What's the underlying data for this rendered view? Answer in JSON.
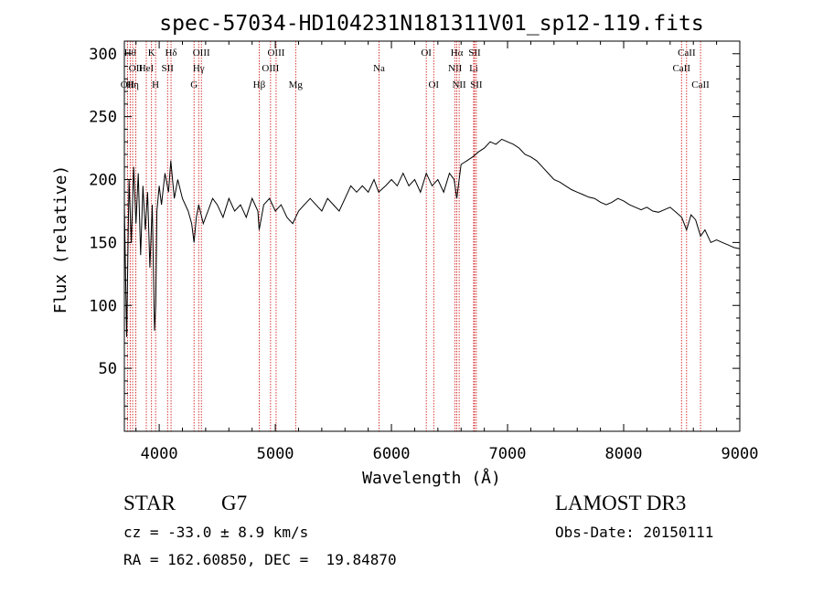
{
  "chart_data": {
    "type": "line",
    "title": "spec-57034-HD104231N181311V01_sp12-119.fits",
    "xlabel": "Wavelength (Å)",
    "ylabel": "Flux (relative)",
    "xlim": [
      3700,
      9000
    ],
    "ylim": [
      0,
      310
    ],
    "x_ticks": [
      4000,
      5000,
      6000,
      7000,
      8000,
      9000
    ],
    "y_ticks": [
      50,
      100,
      150,
      200,
      250,
      300
    ],
    "series": [
      {
        "name": "flux",
        "x": [
          3700,
          3720,
          3740,
          3760,
          3780,
          3800,
          3820,
          3840,
          3860,
          3880,
          3900,
          3920,
          3940,
          3960,
          3970,
          3980,
          4000,
          4020,
          4050,
          4080,
          4100,
          4130,
          4160,
          4200,
          4250,
          4280,
          4300,
          4320,
          4340,
          4380,
          4420,
          4460,
          4500,
          4550,
          4600,
          4650,
          4700,
          4750,
          4800,
          4850,
          4861,
          4900,
          4950,
          5000,
          5050,
          5100,
          5150,
          5200,
          5250,
          5300,
          5350,
          5400,
          5450,
          5500,
          5550,
          5600,
          5650,
          5700,
          5750,
          5800,
          5850,
          5890,
          5950,
          6000,
          6050,
          6100,
          6150,
          6200,
          6250,
          6300,
          6350,
          6400,
          6450,
          6500,
          6540,
          6563,
          6600,
          6650,
          6700,
          6750,
          6800,
          6850,
          6900,
          6950,
          7000,
          7050,
          7100,
          7150,
          7200,
          7250,
          7300,
          7350,
          7400,
          7450,
          7500,
          7550,
          7600,
          7650,
          7700,
          7750,
          7800,
          7850,
          7900,
          7950,
          8000,
          8050,
          8100,
          8150,
          8200,
          8250,
          8300,
          8350,
          8400,
          8450,
          8500,
          8542,
          8580,
          8620,
          8662,
          8700,
          8750,
          8800,
          8850,
          8900,
          8950,
          9000
        ],
        "y": [
          180,
          75,
          200,
          150,
          210,
          165,
          205,
          140,
          195,
          160,
          190,
          130,
          180,
          80,
          100,
          175,
          195,
          180,
          205,
          190,
          215,
          185,
          200,
          185,
          175,
          165,
          150,
          170,
          180,
          165,
          175,
          185,
          180,
          170,
          185,
          175,
          180,
          170,
          185,
          175,
          160,
          180,
          185,
          175,
          180,
          170,
          165,
          175,
          180,
          185,
          180,
          175,
          185,
          180,
          175,
          185,
          195,
          190,
          195,
          190,
          200,
          190,
          195,
          200,
          195,
          205,
          195,
          200,
          190,
          205,
          195,
          200,
          190,
          205,
          200,
          185,
          212,
          215,
          218,
          222,
          225,
          230,
          228,
          232,
          230,
          228,
          225,
          220,
          218,
          215,
          210,
          205,
          200,
          198,
          195,
          192,
          190,
          188,
          186,
          185,
          182,
          180,
          182,
          185,
          183,
          180,
          178,
          176,
          178,
          175,
          174,
          176,
          178,
          174,
          170,
          160,
          172,
          168,
          155,
          160,
          150,
          152,
          150,
          148,
          146,
          145
        ]
      }
    ],
    "line_markers": [
      {
        "wl": 3727,
        "label": "OII",
        "row": 2
      },
      {
        "wl": 3750,
        "label": "Hθ",
        "row": 0
      },
      {
        "wl": 3771,
        "label": "Hη",
        "row": 2
      },
      {
        "wl": 3798,
        "label": "OII",
        "row": 1
      },
      {
        "wl": 3889,
        "label": "HeI",
        "row": 1
      },
      {
        "wl": 3934,
        "label": "K",
        "row": 0
      },
      {
        "wl": 3969,
        "label": "H",
        "row": 2
      },
      {
        "wl": 4072,
        "label": "SII",
        "row": 1
      },
      {
        "wl": 4102,
        "label": "Hδ",
        "row": 0
      },
      {
        "wl": 4300,
        "label": "G",
        "row": 2
      },
      {
        "wl": 4340,
        "label": "Hγ",
        "row": 1
      },
      {
        "wl": 4363,
        "label": "OIII",
        "row": 0
      },
      {
        "wl": 4861,
        "label": "Hβ",
        "row": 2
      },
      {
        "wl": 4959,
        "label": "OIII",
        "row": 1
      },
      {
        "wl": 5007,
        "label": "OIII",
        "row": 0
      },
      {
        "wl": 5175,
        "label": "Mg",
        "row": 2
      },
      {
        "wl": 5893,
        "label": "Na",
        "row": 1
      },
      {
        "wl": 6300,
        "label": "OI",
        "row": 0
      },
      {
        "wl": 6364,
        "label": "OI",
        "row": 2
      },
      {
        "wl": 6548,
        "label": "NII",
        "row": 1
      },
      {
        "wl": 6563,
        "label": "Hα",
        "row": 0
      },
      {
        "wl": 6583,
        "label": "NII",
        "row": 2
      },
      {
        "wl": 6708,
        "label": "Li",
        "row": 1
      },
      {
        "wl": 6716,
        "label": "SII",
        "row": 0
      },
      {
        "wl": 6731,
        "label": "SII",
        "row": 2
      },
      {
        "wl": 8498,
        "label": "CaII",
        "row": 1
      },
      {
        "wl": 8542,
        "label": "CaII",
        "row": 0
      },
      {
        "wl": 8662,
        "label": "CaII",
        "row": 2
      }
    ]
  },
  "footer": {
    "object_class": "STAR",
    "subclass": "G7",
    "survey": "LAMOST DR3",
    "cz": "cz = -33.0 ± 8.9 km/s",
    "obs_date": "Obs-Date: 20150111",
    "coords": "RA = 162.60850, DEC =  19.84870"
  },
  "colors": {
    "spectrum": "#000000",
    "markers": "#cc0000",
    "axes": "#000000"
  }
}
